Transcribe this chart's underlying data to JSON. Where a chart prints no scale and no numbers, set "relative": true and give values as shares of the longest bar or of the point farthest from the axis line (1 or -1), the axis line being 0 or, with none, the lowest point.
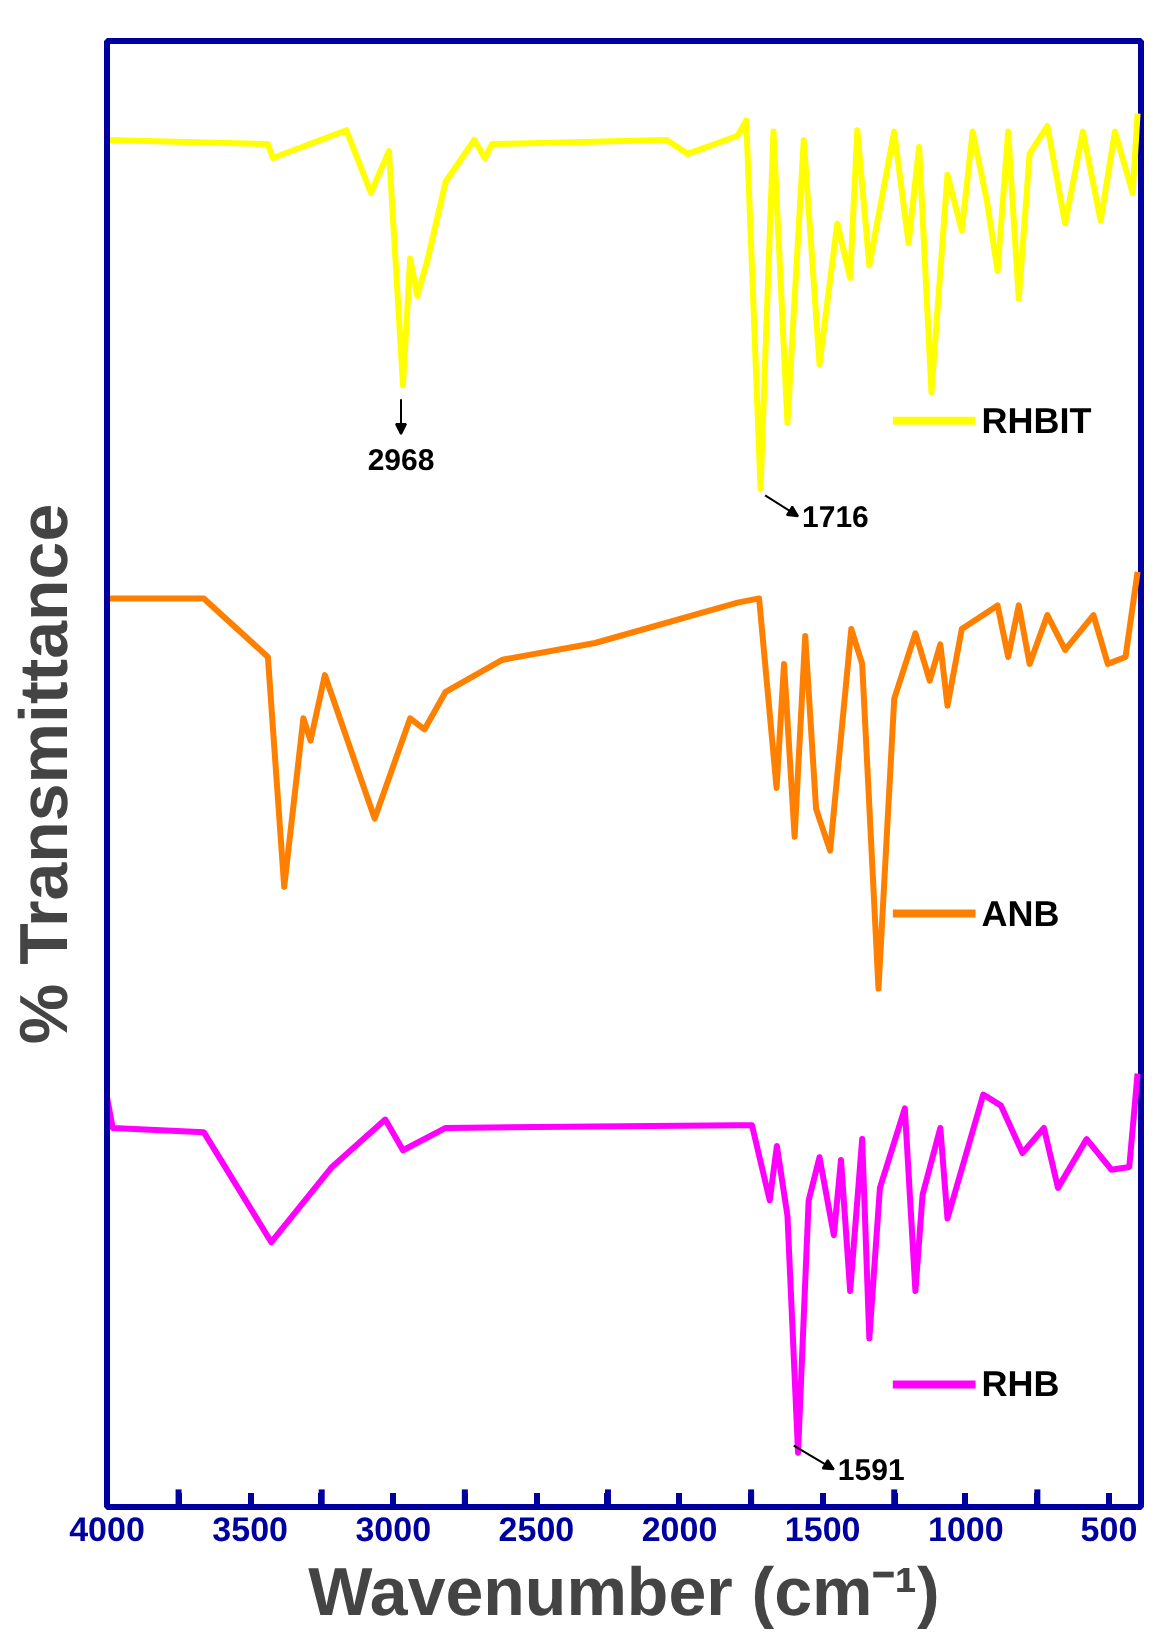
{
  "chart_data": {
    "type": "line",
    "relative": true,
    "xlabel": "Wavenumber (cm⁻¹)",
    "ylabel": "% Transmittance",
    "xlim": [
      4000,
      388
    ],
    "xticks": [
      4000,
      {
        "value": 3750,
        "label": null
      },
      3500,
      {
        "value": 3250,
        "label": null
      },
      3000,
      {
        "value": 2750,
        "label": null
      },
      2500,
      {
        "value": 2250,
        "label": null
      },
      2000,
      {
        "value": 1750,
        "label": null
      },
      1500,
      {
        "value": 1250,
        "label": null
      },
      1000,
      {
        "value": 750,
        "label": null
      },
      500
    ],
    "legend": "right",
    "grid": false,
    "series": [
      {
        "name": "RHBIT",
        "color": "#ffff00",
        "x": [
          4000,
          3438,
          3420,
          3164,
          3078,
          3015,
          2966,
          2941,
          2916,
          2879,
          2817,
          2717,
          2680,
          2655,
          2045,
          1971,
          1797,
          1767,
          1717,
          1672,
          1623,
          1566,
          1511,
          1449,
          1404,
          1379,
          1337,
          1300,
          1250,
          1200,
          1163,
          1120,
          1064,
          1014,
          976,
          926,
          889,
          852,
          815,
          777,
          715,
          653,
          591,
          529,
          479,
          417,
          400
        ],
        "values": [
          0.981,
          0.978,
          0.968,
          0.988,
          0.943,
          0.973,
          0.805,
          0.896,
          0.869,
          0.896,
          0.951,
          0.981,
          0.968,
          0.978,
          0.981,
          0.971,
          0.984,
          0.995,
          0.731,
          0.987,
          0.778,
          0.981,
          0.82,
          0.921,
          0.882,
          0.988,
          0.891,
          0.932,
          0.987,
          0.907,
          0.976,
          0.8,
          0.956,
          0.916,
          0.987,
          0.937,
          0.887,
          0.987,
          0.867,
          0.971,
          0.991,
          0.921,
          0.987,
          0.923,
          0.987,
          0.943,
          1.0
        ]
      },
      {
        "name": "ANB",
        "color": "#ff8000",
        "x": [
          4000,
          3662,
          3438,
          3381,
          3314,
          3289,
          3239,
          3065,
          2941,
          2891,
          2817,
          2618,
          2295,
          1797,
          1722,
          1661,
          1635,
          1598,
          1561,
          1523,
          1474,
          1400,
          1362,
          1305,
          1250,
          1176,
          1126,
          1089,
          1064,
          1014,
          889,
          852,
          815,
          777,
          715,
          653,
          554,
          504,
          442,
          400
        ],
        "values": [
          0.652,
          0.652,
          0.61,
          0.445,
          0.566,
          0.55,
          0.597,
          0.494,
          0.566,
          0.558,
          0.585,
          0.608,
          0.62,
          0.649,
          0.652,
          0.516,
          0.605,
          0.481,
          0.625,
          0.501,
          0.471,
          0.63,
          0.605,
          0.372,
          0.58,
          0.627,
          0.593,
          0.619,
          0.575,
          0.63,
          0.647,
          0.61,
          0.647,
          0.605,
          0.64,
          0.615,
          0.64,
          0.605,
          0.61,
          0.671
        ]
      },
      {
        "name": "RHB",
        "color": "#ff00ff",
        "x": [
          4000,
          3980,
          3662,
          3426,
          3214,
          3028,
          2966,
          2817,
          1797,
          1747,
          1685,
          1660,
          1623,
          1586,
          1549,
          1511,
          1461,
          1436,
          1404,
          1362,
          1337,
          1300,
          1213,
          1176,
          1151,
          1089,
          1064,
          939,
          877,
          802,
          727,
          678,
          578,
          491,
          429,
          400
        ],
        "values": [
          0.294,
          0.272,
          0.269,
          0.19,
          0.244,
          0.278,
          0.256,
          0.272,
          0.274,
          0.274,
          0.22,
          0.259,
          0.209,
          0.039,
          0.22,
          0.251,
          0.195,
          0.249,
          0.155,
          0.264,
          0.121,
          0.229,
          0.286,
          0.155,
          0.224,
          0.272,
          0.207,
          0.296,
          0.288,
          0.254,
          0.272,
          0.229,
          0.264,
          0.242,
          0.244,
          0.311
        ]
      }
    ],
    "annotations": [
      {
        "text": "2968",
        "x": 2968,
        "y": 0.805
      },
      {
        "text": "1716",
        "x": 1716,
        "y": 0.731
      },
      {
        "text": "1591",
        "x": 1591,
        "y": 0.039
      }
    ]
  }
}
